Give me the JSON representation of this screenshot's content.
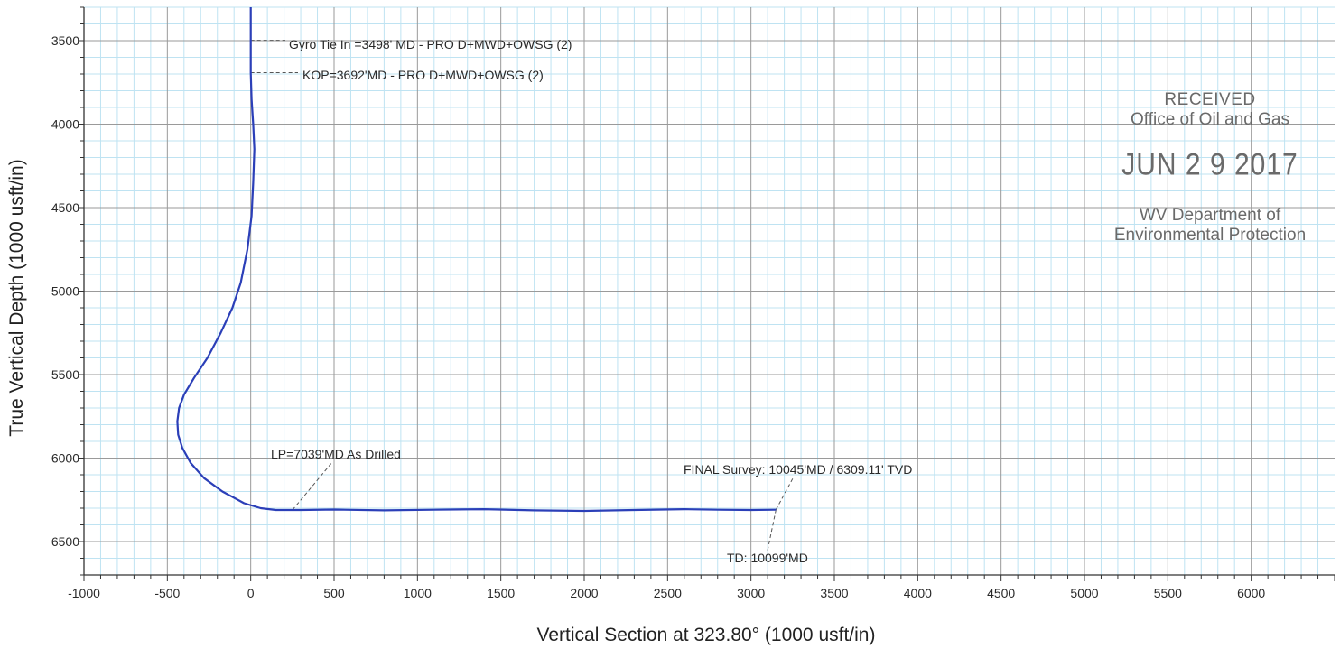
{
  "chart_data": {
    "type": "line",
    "xlabel": "Vertical Section at 323.80° (1000 usft/in)",
    "ylabel": "True Vertical Depth (1000 usft/in)",
    "xlim": [
      -1000,
      6500
    ],
    "ylim": [
      3300,
      6700
    ],
    "y_inverted": true,
    "grid": true,
    "x_ticks": [
      -1000,
      -500,
      0,
      500,
      1000,
      1500,
      2000,
      2500,
      3000,
      3500,
      4000,
      4500,
      5000,
      5500,
      6000
    ],
    "y_ticks": [
      3500,
      4000,
      4500,
      5000,
      5500,
      6000,
      6500
    ],
    "line_color": "#2b3fb8",
    "series": [
      {
        "x": [
          0,
          0,
          0,
          5,
          15,
          22,
          15,
          5,
          -20,
          -60,
          -110,
          -180,
          -260,
          -340,
          -400,
          -430,
          -440,
          -435,
          -410,
          -360,
          -280,
          -170,
          -40,
          60,
          150,
          300,
          500,
          800,
          1100,
          1400,
          1700,
          2000,
          2300,
          2600,
          2800,
          3000,
          3150
        ],
        "y": [
          3300,
          3498,
          3692,
          3850,
          4000,
          4150,
          4350,
          4550,
          4750,
          4950,
          5100,
          5250,
          5400,
          5520,
          5620,
          5700,
          5780,
          5860,
          5940,
          6030,
          6120,
          6200,
          6270,
          6300,
          6311,
          6311,
          6308,
          6313,
          6309,
          6306,
          6313,
          6316,
          6311,
          6306,
          6309,
          6311,
          6309
        ]
      }
    ],
    "annotations": [
      {
        "text": "Gyro Tie In =3498' MD - PRO D+MWD+OWSG (2)"
      },
      {
        "text": "KOP=3692'MD - PRO D+MWD+OWSG (2)"
      },
      {
        "text": "LP=7039'MD As Drilled"
      },
      {
        "text": "FINAL Survey: 10045'MD / 6309.11' TVD"
      },
      {
        "text": "TD: 10099'MD"
      }
    ]
  },
  "stamp": {
    "line1": "RECEIVED",
    "line2": "Office of Oil and Gas",
    "line3": "JUN 2 9 2017",
    "line4": "WV Department of",
    "line5": "Environmental Protection"
  }
}
